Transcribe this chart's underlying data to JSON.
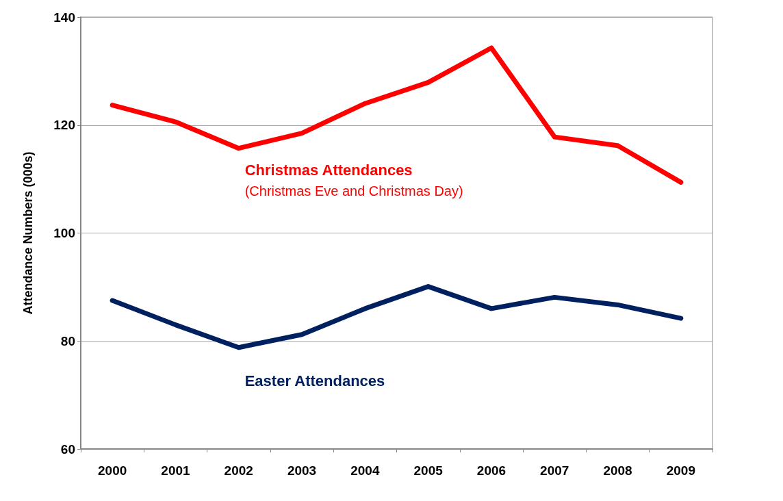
{
  "chart_data": {
    "type": "line",
    "ylabel": "Attendance Numbers (000s)",
    "categories": [
      "2000",
      "2001",
      "2002",
      "2003",
      "2004",
      "2005",
      "2006",
      "2007",
      "2008",
      "2009"
    ],
    "series": [
      {
        "name": "Christmas Attendances",
        "color": "#ff0000",
        "values": [
          123.7,
          120.6,
          115.7,
          118.5,
          124,
          127.9,
          134.3,
          117.8,
          116.2,
          109.4
        ]
      },
      {
        "name": "Easter Attendances",
        "color": "#002060",
        "values": [
          87.5,
          83,
          78.8,
          81.2,
          86,
          90.1,
          86,
          88.1,
          86.7,
          84.2
        ]
      }
    ],
    "annotations": [
      "(Christmas Eve and Christmas Day)"
    ],
    "ylim": [
      60,
      140
    ],
    "yticks": [
      60,
      80,
      100,
      120,
      140
    ],
    "grid": "y",
    "legend": false,
    "marker": "none",
    "line_style": "solid"
  }
}
